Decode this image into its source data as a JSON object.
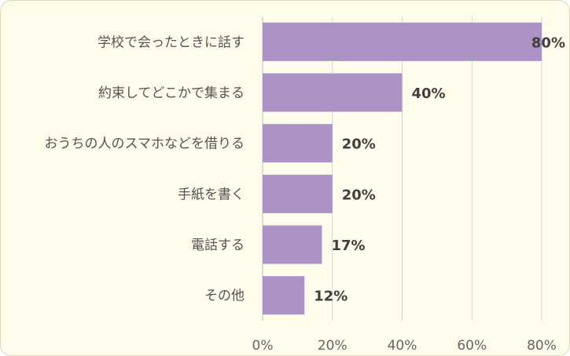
{
  "chart_data": {
    "type": "bar",
    "orientation": "horizontal",
    "categories": [
      "学校で会ったときに話す",
      "約束してどこかで集まる",
      "おうちの人のスマホなどを借りる",
      "手紙を書く",
      "電話する",
      "その他"
    ],
    "values": [
      80,
      40,
      20,
      20,
      17,
      12
    ],
    "data_labels": [
      "80%",
      "40%",
      "20%",
      "20%",
      "17%",
      "12%"
    ],
    "xlim": [
      0,
      80
    ],
    "ticks": [
      0,
      20,
      40,
      60,
      80
    ],
    "tick_labels": [
      "0%",
      "20%",
      "40%",
      "60%",
      "80%"
    ],
    "grid": true,
    "bar_color": "#ab93c5",
    "background_color": "#fefcea"
  }
}
